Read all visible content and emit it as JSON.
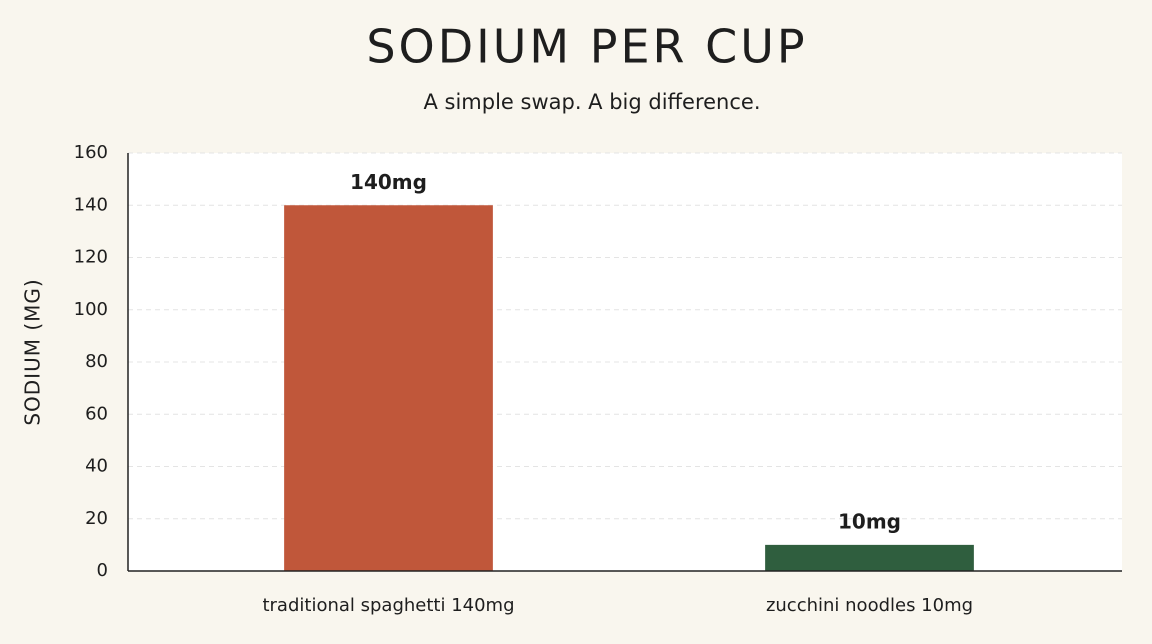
{
  "chart_data": {
    "type": "bar",
    "title": "SODIUM PER CUP",
    "subtitle": "A simple swap. A big difference.",
    "y_label": "SODIUM (MG)",
    "categories": [
      "traditional spaghetti 140mg",
      "zucchini noodles 10mg"
    ],
    "values": [
      140,
      10
    ],
    "value_labels": [
      "140mg",
      "10mg"
    ],
    "colors": [
      "#c0573a",
      "#2f5e3e"
    ],
    "ylim": [
      0,
      160
    ],
    "yticks": [
      0,
      20,
      40,
      60,
      80,
      100,
      120,
      140,
      160
    ],
    "grid": true
  }
}
